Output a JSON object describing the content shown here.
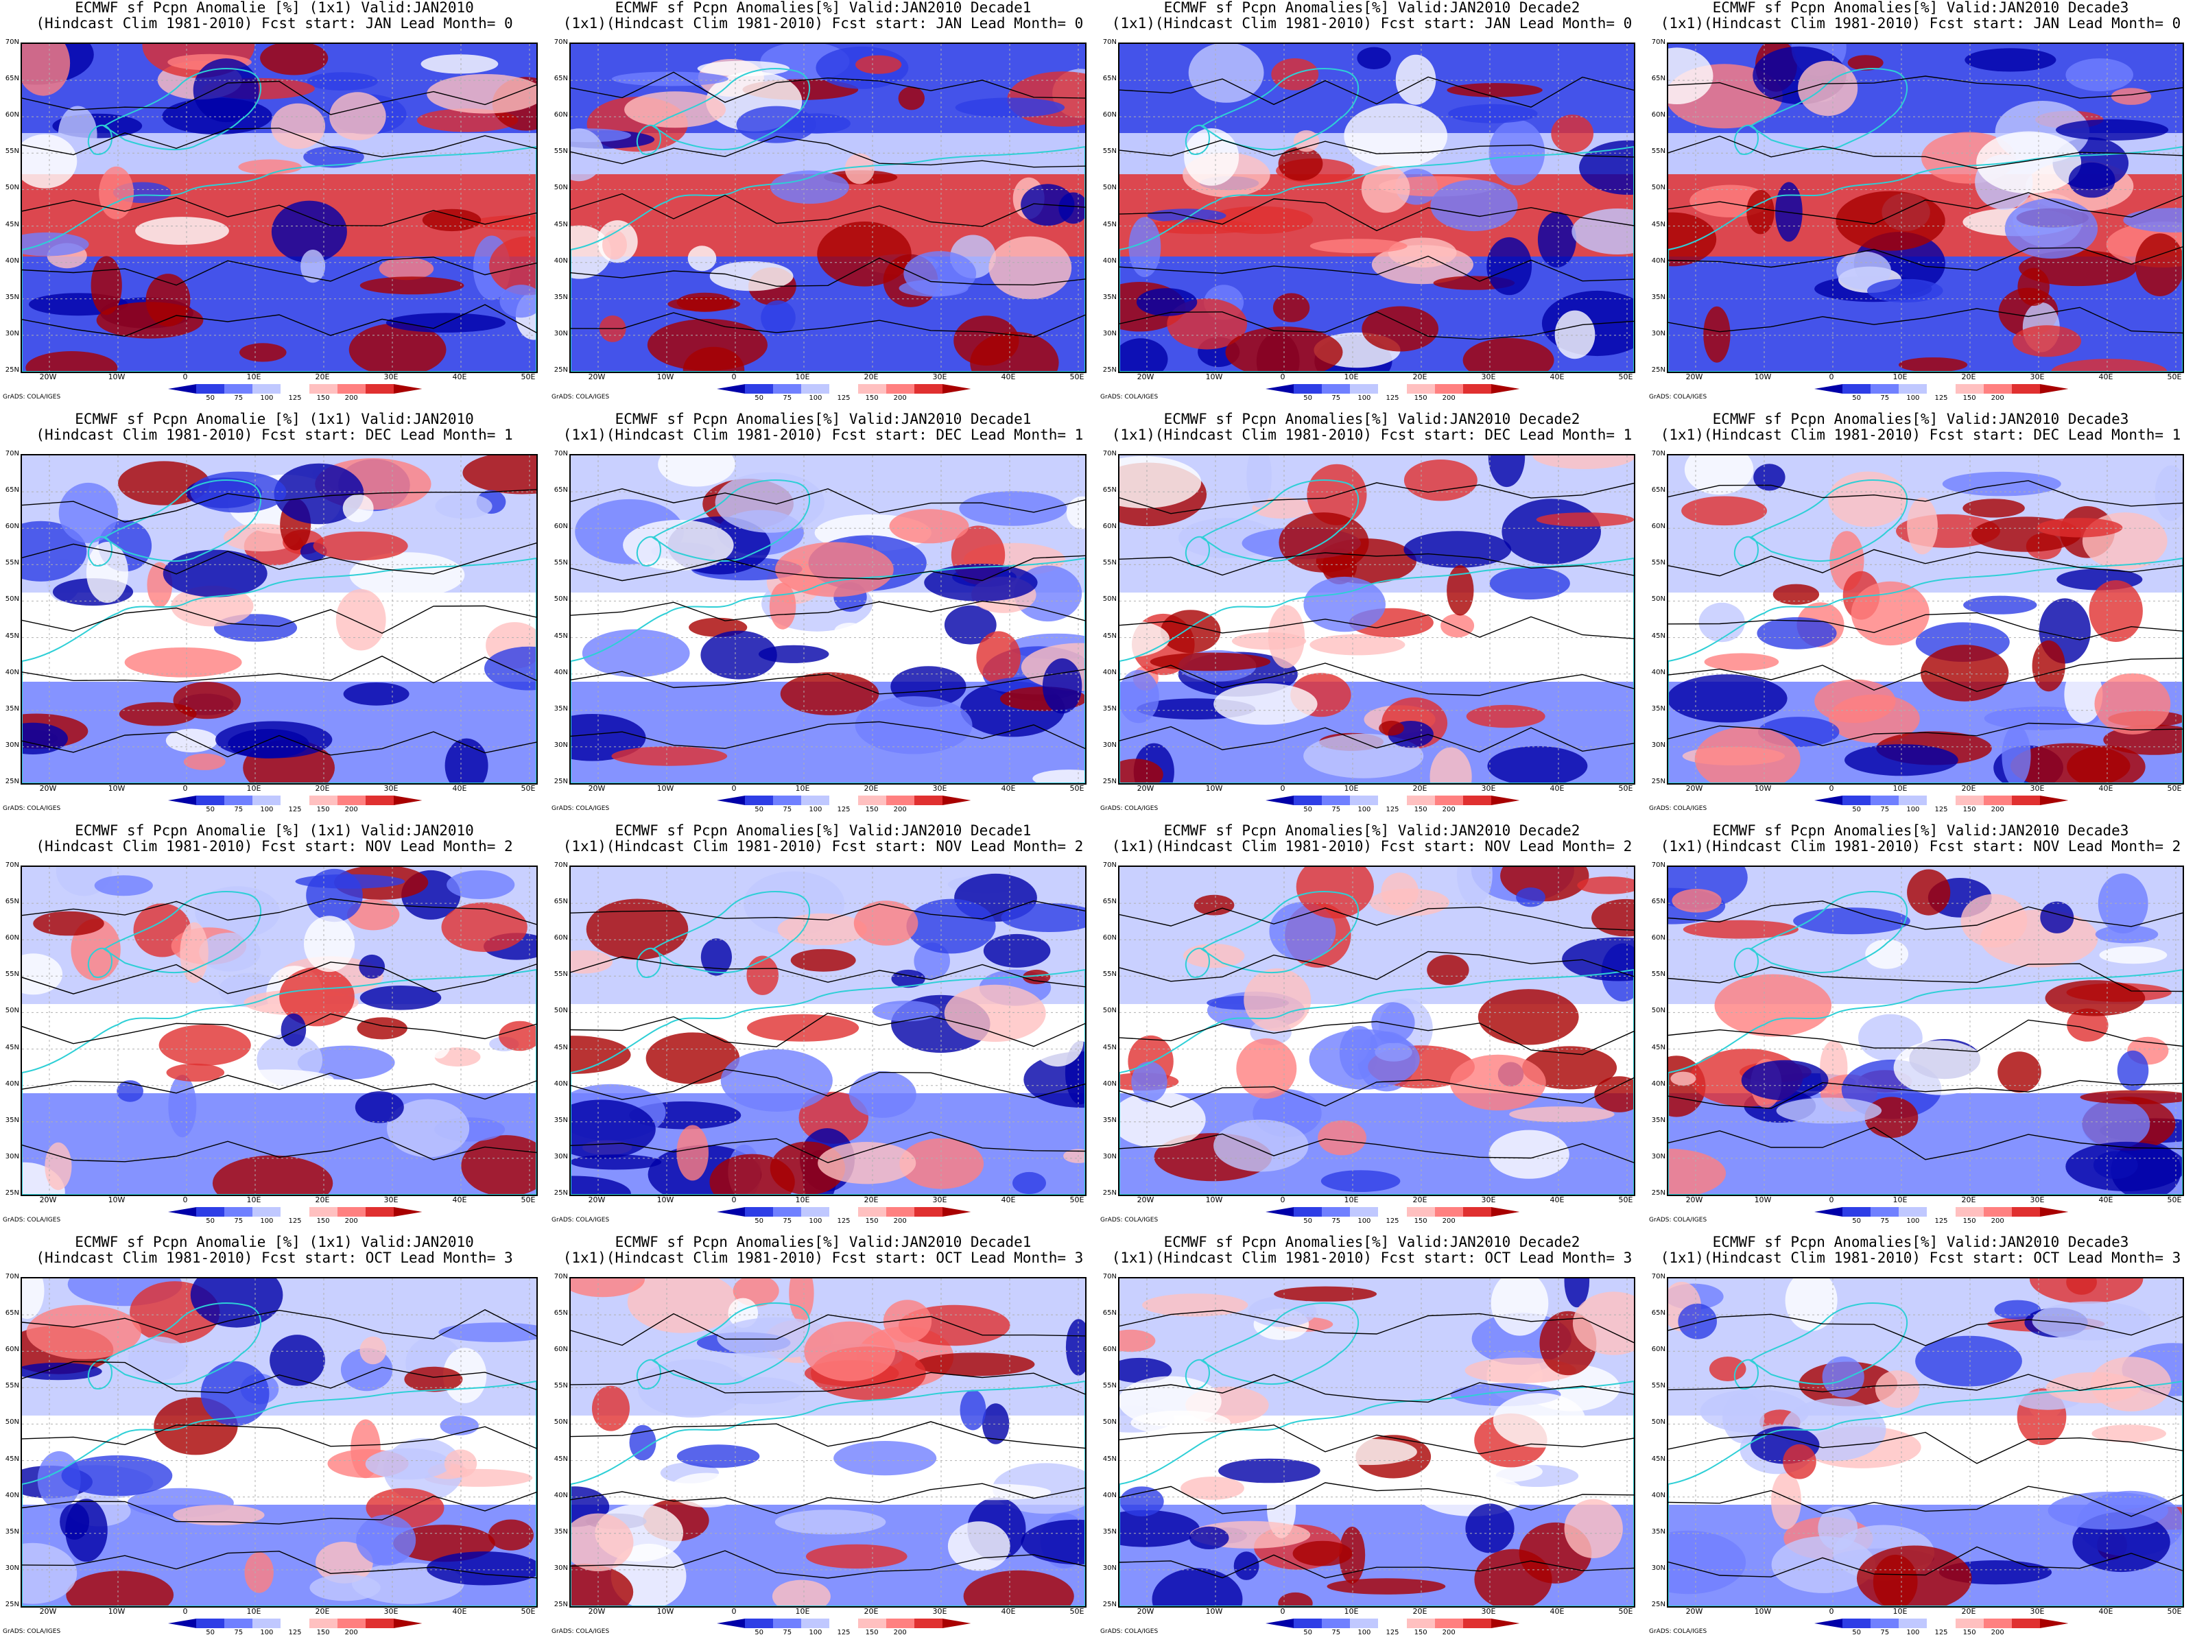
{
  "panels": [
    {
      "row": 0,
      "col": 0,
      "title1": "ECMWF sf Pcpn Anomalie [%] (1x1) Valid:JAN2010",
      "title2": "(Hindcast Clim 1981-2010) Fcst start: JAN  Lead Month= 0"
    },
    {
      "row": 0,
      "col": 1,
      "title1": "ECMWF sf Pcpn Anomalies[%] Valid:JAN2010 Decade1",
      "title2": "(1x1)(Hindcast Clim 1981-2010) Fcst start: JAN  Lead Month= 0"
    },
    {
      "row": 0,
      "col": 2,
      "title1": "ECMWF sf Pcpn Anomalies[%] Valid:JAN2010 Decade2",
      "title2": "(1x1)(Hindcast Clim 1981-2010) Fcst start: JAN  Lead Month= 0"
    },
    {
      "row": 0,
      "col": 3,
      "title1": "ECMWF sf Pcpn Anomalies[%] Valid:JAN2010 Decade3",
      "title2": "(1x1)(Hindcast Clim 1981-2010) Fcst start: JAN  Lead Month= 0"
    },
    {
      "row": 1,
      "col": 0,
      "title1": "ECMWF sf Pcpn Anomalie [%] (1x1) Valid:JAN2010",
      "title2": "(Hindcast Clim 1981-2010) Fcst start: DEC  Lead Month= 1"
    },
    {
      "row": 1,
      "col": 1,
      "title1": "ECMWF sf Pcpn Anomalies[%] Valid:JAN2010 Decade1",
      "title2": "(1x1)(Hindcast Clim 1981-2010) Fcst start: DEC  Lead Month= 1"
    },
    {
      "row": 1,
      "col": 2,
      "title1": "ECMWF sf Pcpn Anomalies[%] Valid:JAN2010 Decade2",
      "title2": "(1x1)(Hindcast Clim 1981-2010) Fcst start: DEC  Lead Month= 1"
    },
    {
      "row": 1,
      "col": 3,
      "title1": "ECMWF sf Pcpn Anomalies[%] Valid:JAN2010 Decade3",
      "title2": "(1x1)(Hindcast Clim 1981-2010) Fcst start: DEC  Lead Month= 1"
    },
    {
      "row": 2,
      "col": 0,
      "title1": "ECMWF sf Pcpn Anomalie [%] (1x1) Valid:JAN2010",
      "title2": "(Hindcast Clim 1981-2010) Fcst start: NOV  Lead Month= 2"
    },
    {
      "row": 2,
      "col": 1,
      "title1": "ECMWF sf Pcpn Anomalies[%] Valid:JAN2010 Decade1",
      "title2": "(1x1)(Hindcast Clim 1981-2010) Fcst start: NOV  Lead Month= 2"
    },
    {
      "row": 2,
      "col": 2,
      "title1": "ECMWF sf Pcpn Anomalies[%] Valid:JAN2010 Decade2",
      "title2": "(1x1)(Hindcast Clim 1981-2010) Fcst start: NOV  Lead Month= 2"
    },
    {
      "row": 2,
      "col": 3,
      "title1": "ECMWF sf Pcpn Anomalies[%] Valid:JAN2010 Decade3",
      "title2": "(1x1)(Hindcast Clim 1981-2010) Fcst start: NOV  Lead Month= 2"
    },
    {
      "row": 3,
      "col": 0,
      "title1": "ECMWF sf Pcpn Anomalie [%] (1x1) Valid:JAN2010",
      "title2": "(Hindcast Clim 1981-2010) Fcst start: OCT  Lead Month= 3"
    },
    {
      "row": 3,
      "col": 1,
      "title1": "ECMWF sf Pcpn Anomalies[%] Valid:JAN2010 Decade1",
      "title2": "(1x1)(Hindcast Clim 1981-2010) Fcst start: OCT  Lead Month= 3"
    },
    {
      "row": 3,
      "col": 2,
      "title1": "ECMWF sf Pcpn Anomalies[%] Valid:JAN2010 Decade2",
      "title2": "(1x1)(Hindcast Clim 1981-2010) Fcst start: OCT  Lead Month= 3"
    },
    {
      "row": 3,
      "col": 3,
      "title1": "ECMWF sf Pcpn Anomalies[%] Valid:JAN2010 Decade3",
      "title2": "(1x1)(Hindcast Clim 1981-2010) Fcst start: OCT  Lead Month= 3"
    }
  ],
  "lat_ticks": [
    "70N",
    "65N",
    "60N",
    "55N",
    "50N",
    "45N",
    "40N",
    "35N",
    "30N",
    "25N"
  ],
  "lon_ticks": [
    "20W",
    "10W",
    "0",
    "10E",
    "20E",
    "30E",
    "40E",
    "50E"
  ],
  "colorbar": {
    "labels": [
      "50",
      "75",
      "100",
      "125",
      "150",
      "200"
    ],
    "colors": [
      "#0000a8",
      "#2e3ee6",
      "#7080ff",
      "#c0c8ff",
      "#ffffff",
      "#ffc0c0",
      "#ff8080",
      "#e03030",
      "#a80000"
    ]
  },
  "credit": "GrADS: COLA/IGES",
  "colors": {
    "coastline": "#2ecfd6",
    "contour": "#000000",
    "grid": "#b0b0b0"
  }
}
